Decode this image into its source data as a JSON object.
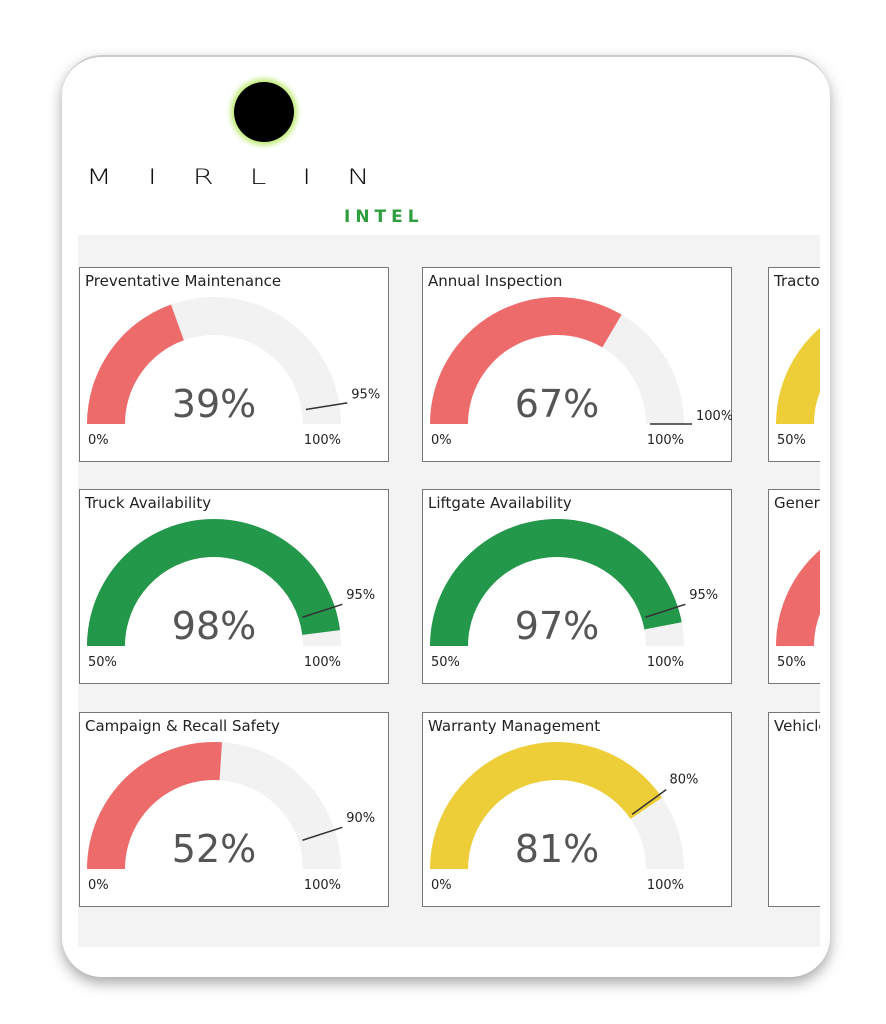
{
  "logo": {
    "name": "MIRLIN",
    "tagline": "INTEL"
  },
  "chart_data": [
    {
      "type": "gauge",
      "title": "Preventative Maintenance",
      "values": [
        39
      ],
      "value_labels": [
        "39%"
      ],
      "color": "#ee6b6b",
      "ylim": [
        0,
        100
      ],
      "yticks": [
        {
          "value": 0,
          "label": "0%"
        },
        {
          "value": 100,
          "label": "100%"
        }
      ],
      "target": {
        "value": 95,
        "label": "95%"
      }
    },
    {
      "type": "gauge",
      "title": "Annual Inspection",
      "values": [
        67
      ],
      "value_labels": [
        "67%"
      ],
      "color": "#ee6b6b",
      "ylim": [
        0,
        100
      ],
      "yticks": [
        {
          "value": 0,
          "label": "0%"
        },
        {
          "value": 100,
          "label": "100%"
        }
      ],
      "target": {
        "value": 100,
        "label": "100%"
      }
    },
    {
      "type": "gauge",
      "title": "Tracto",
      "color": "#edcd38",
      "yticks": [
        {
          "value": 50,
          "label": "50%"
        }
      ]
    },
    {
      "type": "gauge",
      "title": "Truck Availability",
      "values": [
        98
      ],
      "value_labels": [
        "98%"
      ],
      "color": "#23974a",
      "ylim": [
        50,
        100
      ],
      "yticks": [
        {
          "value": 50,
          "label": "50%"
        },
        {
          "value": 100,
          "label": "100%"
        }
      ],
      "target": {
        "value": 95,
        "label": "95%"
      }
    },
    {
      "type": "gauge",
      "title": "Liftgate Availability",
      "values": [
        97
      ],
      "value_labels": [
        "97%"
      ],
      "color": "#23974a",
      "ylim": [
        50,
        100
      ],
      "yticks": [
        {
          "value": 50,
          "label": "50%"
        },
        {
          "value": 100,
          "label": "100%"
        }
      ],
      "target": {
        "value": 95,
        "label": "95%"
      }
    },
    {
      "type": "gauge",
      "title": "Gener",
      "color": "#ee6b6b",
      "yticks": [
        {
          "value": 50,
          "label": "50%"
        }
      ]
    },
    {
      "type": "gauge",
      "title": "Campaign & Recall Safety",
      "values": [
        52
      ],
      "value_labels": [
        "52%"
      ],
      "color": "#ee6b6b",
      "ylim": [
        0,
        100
      ],
      "yticks": [
        {
          "value": 0,
          "label": "0%"
        },
        {
          "value": 100,
          "label": "100%"
        }
      ],
      "target": {
        "value": 90,
        "label": "90%"
      }
    },
    {
      "type": "gauge",
      "title": "Warranty Management",
      "values": [
        81
      ],
      "value_labels": [
        "81%"
      ],
      "color": "#edcd38",
      "ylim": [
        0,
        100
      ],
      "yticks": [
        {
          "value": 0,
          "label": "0%"
        },
        {
          "value": 100,
          "label": "100%"
        }
      ],
      "target": {
        "value": 80,
        "label": "80%"
      }
    },
    {
      "type": "gauge",
      "title": "Vehicle"
    }
  ]
}
